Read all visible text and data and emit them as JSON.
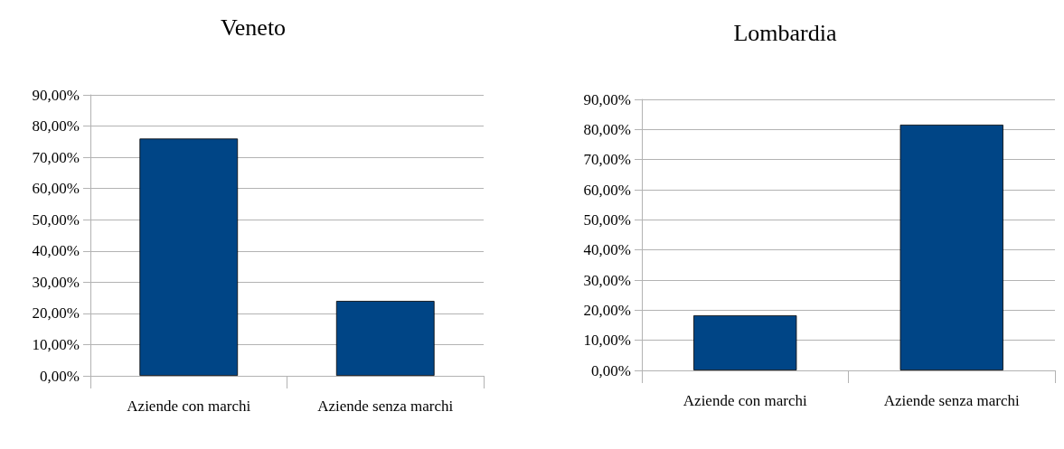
{
  "chart_data": [
    {
      "type": "bar",
      "title": "Veneto",
      "categories": [
        "Aziende con marchi",
        "Aziende senza marchi"
      ],
      "values": [
        76.0,
        24.0
      ],
      "color": "#004586",
      "ylim": [
        0,
        90
      ],
      "yticks": [
        {
          "value": 0,
          "label": "0,00%"
        },
        {
          "value": 10,
          "label": "10,00%"
        },
        {
          "value": 20,
          "label": "20,00%"
        },
        {
          "value": 30,
          "label": "30,00%"
        },
        {
          "value": 40,
          "label": "40,00%"
        },
        {
          "value": 50,
          "label": "50,00%"
        },
        {
          "value": 60,
          "label": "60,00%"
        },
        {
          "value": 70,
          "label": "70,00%"
        },
        {
          "value": 80,
          "label": "80,00%"
        },
        {
          "value": 90,
          "label": "90,00%"
        }
      ],
      "grid": "y"
    },
    {
      "type": "bar",
      "title": "Lombardia",
      "categories": [
        "Aziende con marchi",
        "Aziende senza marchi"
      ],
      "values": [
        18.3,
        81.6
      ],
      "color": "#004586",
      "ylim": [
        0,
        90
      ],
      "yticks": [
        {
          "value": 0,
          "label": "0,00%"
        },
        {
          "value": 10,
          "label": "10,00%"
        },
        {
          "value": 20,
          "label": "20,00%"
        },
        {
          "value": 30,
          "label": "30,00%"
        },
        {
          "value": 40,
          "label": "40,00%"
        },
        {
          "value": 50,
          "label": "50,00%"
        },
        {
          "value": 60,
          "label": "60,00%"
        },
        {
          "value": 70,
          "label": "70,00%"
        },
        {
          "value": 80,
          "label": "80,00%"
        },
        {
          "value": 90,
          "label": "90,00%"
        }
      ],
      "grid": "y"
    }
  ]
}
